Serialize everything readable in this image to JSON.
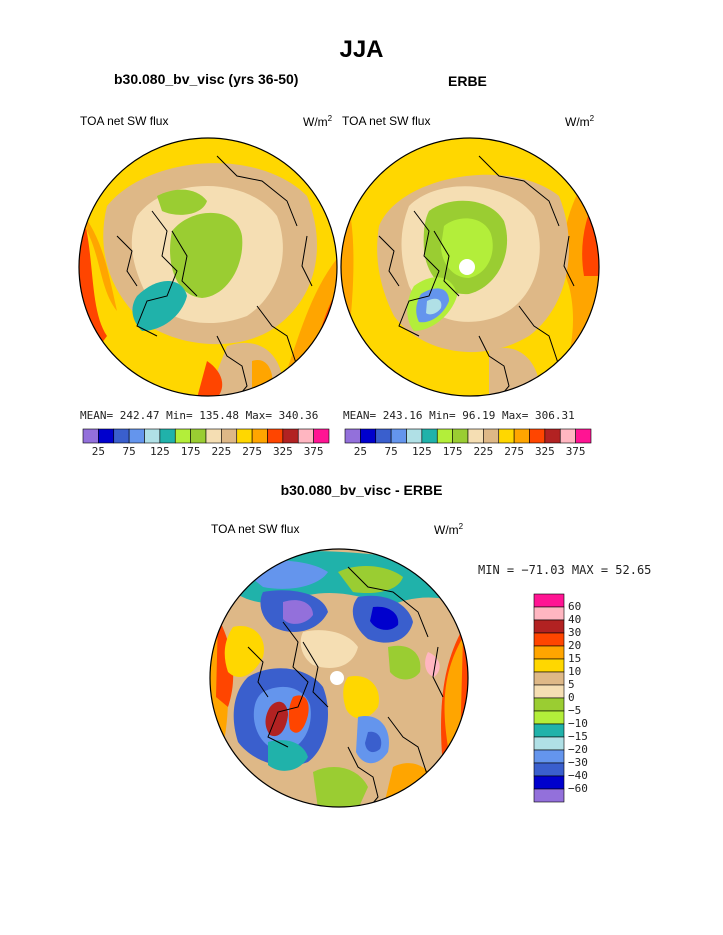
{
  "title": "JJA",
  "palette_abs": [
    "#9370db",
    "#0000cd",
    "#3a5fcd",
    "#6495ed",
    "#b0e0e6",
    "#20b2aa",
    "#b3ee3a",
    "#9acd32",
    "#f5deb3",
    "#deb887",
    "#ffd700",
    "#ffa500",
    "#ff4500",
    "#b22222",
    "#ffb6c1",
    "#ff1493"
  ],
  "palette_diff": [
    "#9370db",
    "#0000cd",
    "#3a5fcd",
    "#6495ed",
    "#b0e0e6",
    "#20b2aa",
    "#b3ee3a",
    "#9acd32",
    "#f5deb3",
    "#deb887",
    "#ffd700",
    "#ffa500",
    "#ff4500",
    "#b22222",
    "#ffb6c1",
    "#ff1493"
  ],
  "left_panel": {
    "title": "b30.080_bv_visc (yrs 36-50)",
    "variable": "TOA net SW flux",
    "units_base": "W/m",
    "units_exp": "2",
    "stats": "MEAN= 242.47   Min= 135.48   Max= 340.36",
    "colorbar_ticks": [
      "25",
      "75",
      "125",
      "175",
      "225",
      "275",
      "325",
      "375"
    ]
  },
  "right_panel": {
    "title": "ERBE",
    "variable": "TOA net SW flux",
    "units_base": "W/m",
    "units_exp": "2",
    "stats": "MEAN= 243.16   Min=  96.19   Max= 306.31",
    "colorbar_ticks": [
      "25",
      "75",
      "125",
      "175",
      "225",
      "275",
      "325",
      "375"
    ]
  },
  "diff_panel": {
    "title": "b30.080_bv_visc - ERBE",
    "variable": "TOA net SW flux",
    "units_base": "W/m",
    "units_exp": "2",
    "stats": "MIN = −71.03 MAX =  52.65",
    "colorbar_labels": [
      "60",
      "40",
      "30",
      "20",
      "15",
      "10",
      "5",
      "0",
      "−5",
      "−10",
      "−15",
      "−20",
      "−30",
      "−40",
      "−60"
    ]
  }
}
